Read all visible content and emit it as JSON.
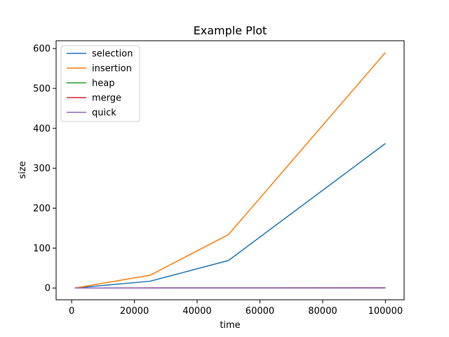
{
  "chart_data": {
    "type": "line",
    "title": "Example Plot",
    "xlabel": "time",
    "ylabel": "size",
    "x": [
      1000,
      25000,
      50000,
      100000
    ],
    "xlim": [
      -4950,
      105950
    ],
    "ylim": [
      -29.5,
      619.5
    ],
    "xticks": [
      0,
      20000,
      40000,
      60000,
      80000,
      100000
    ],
    "yticks": [
      0,
      100,
      200,
      300,
      400,
      500,
      600
    ],
    "grid": false,
    "legend_position": "upper left",
    "series": [
      {
        "name": "selection",
        "color": "#1f77b4",
        "values": [
          0.04,
          17,
          69,
          362
        ]
      },
      {
        "name": "insertion",
        "color": "#ff7f0e",
        "values": [
          0.05,
          32,
          134,
          590
        ]
      },
      {
        "name": "heap",
        "color": "#2ca02c",
        "values": [
          0.003,
          0.1,
          0.2,
          0.5
        ]
      },
      {
        "name": "merge",
        "color": "#d62728",
        "values": [
          0.003,
          0.1,
          0.2,
          0.4
        ]
      },
      {
        "name": "quick",
        "color": "#9467bd",
        "values": [
          0.002,
          0.06,
          0.13,
          0.3
        ]
      }
    ]
  }
}
